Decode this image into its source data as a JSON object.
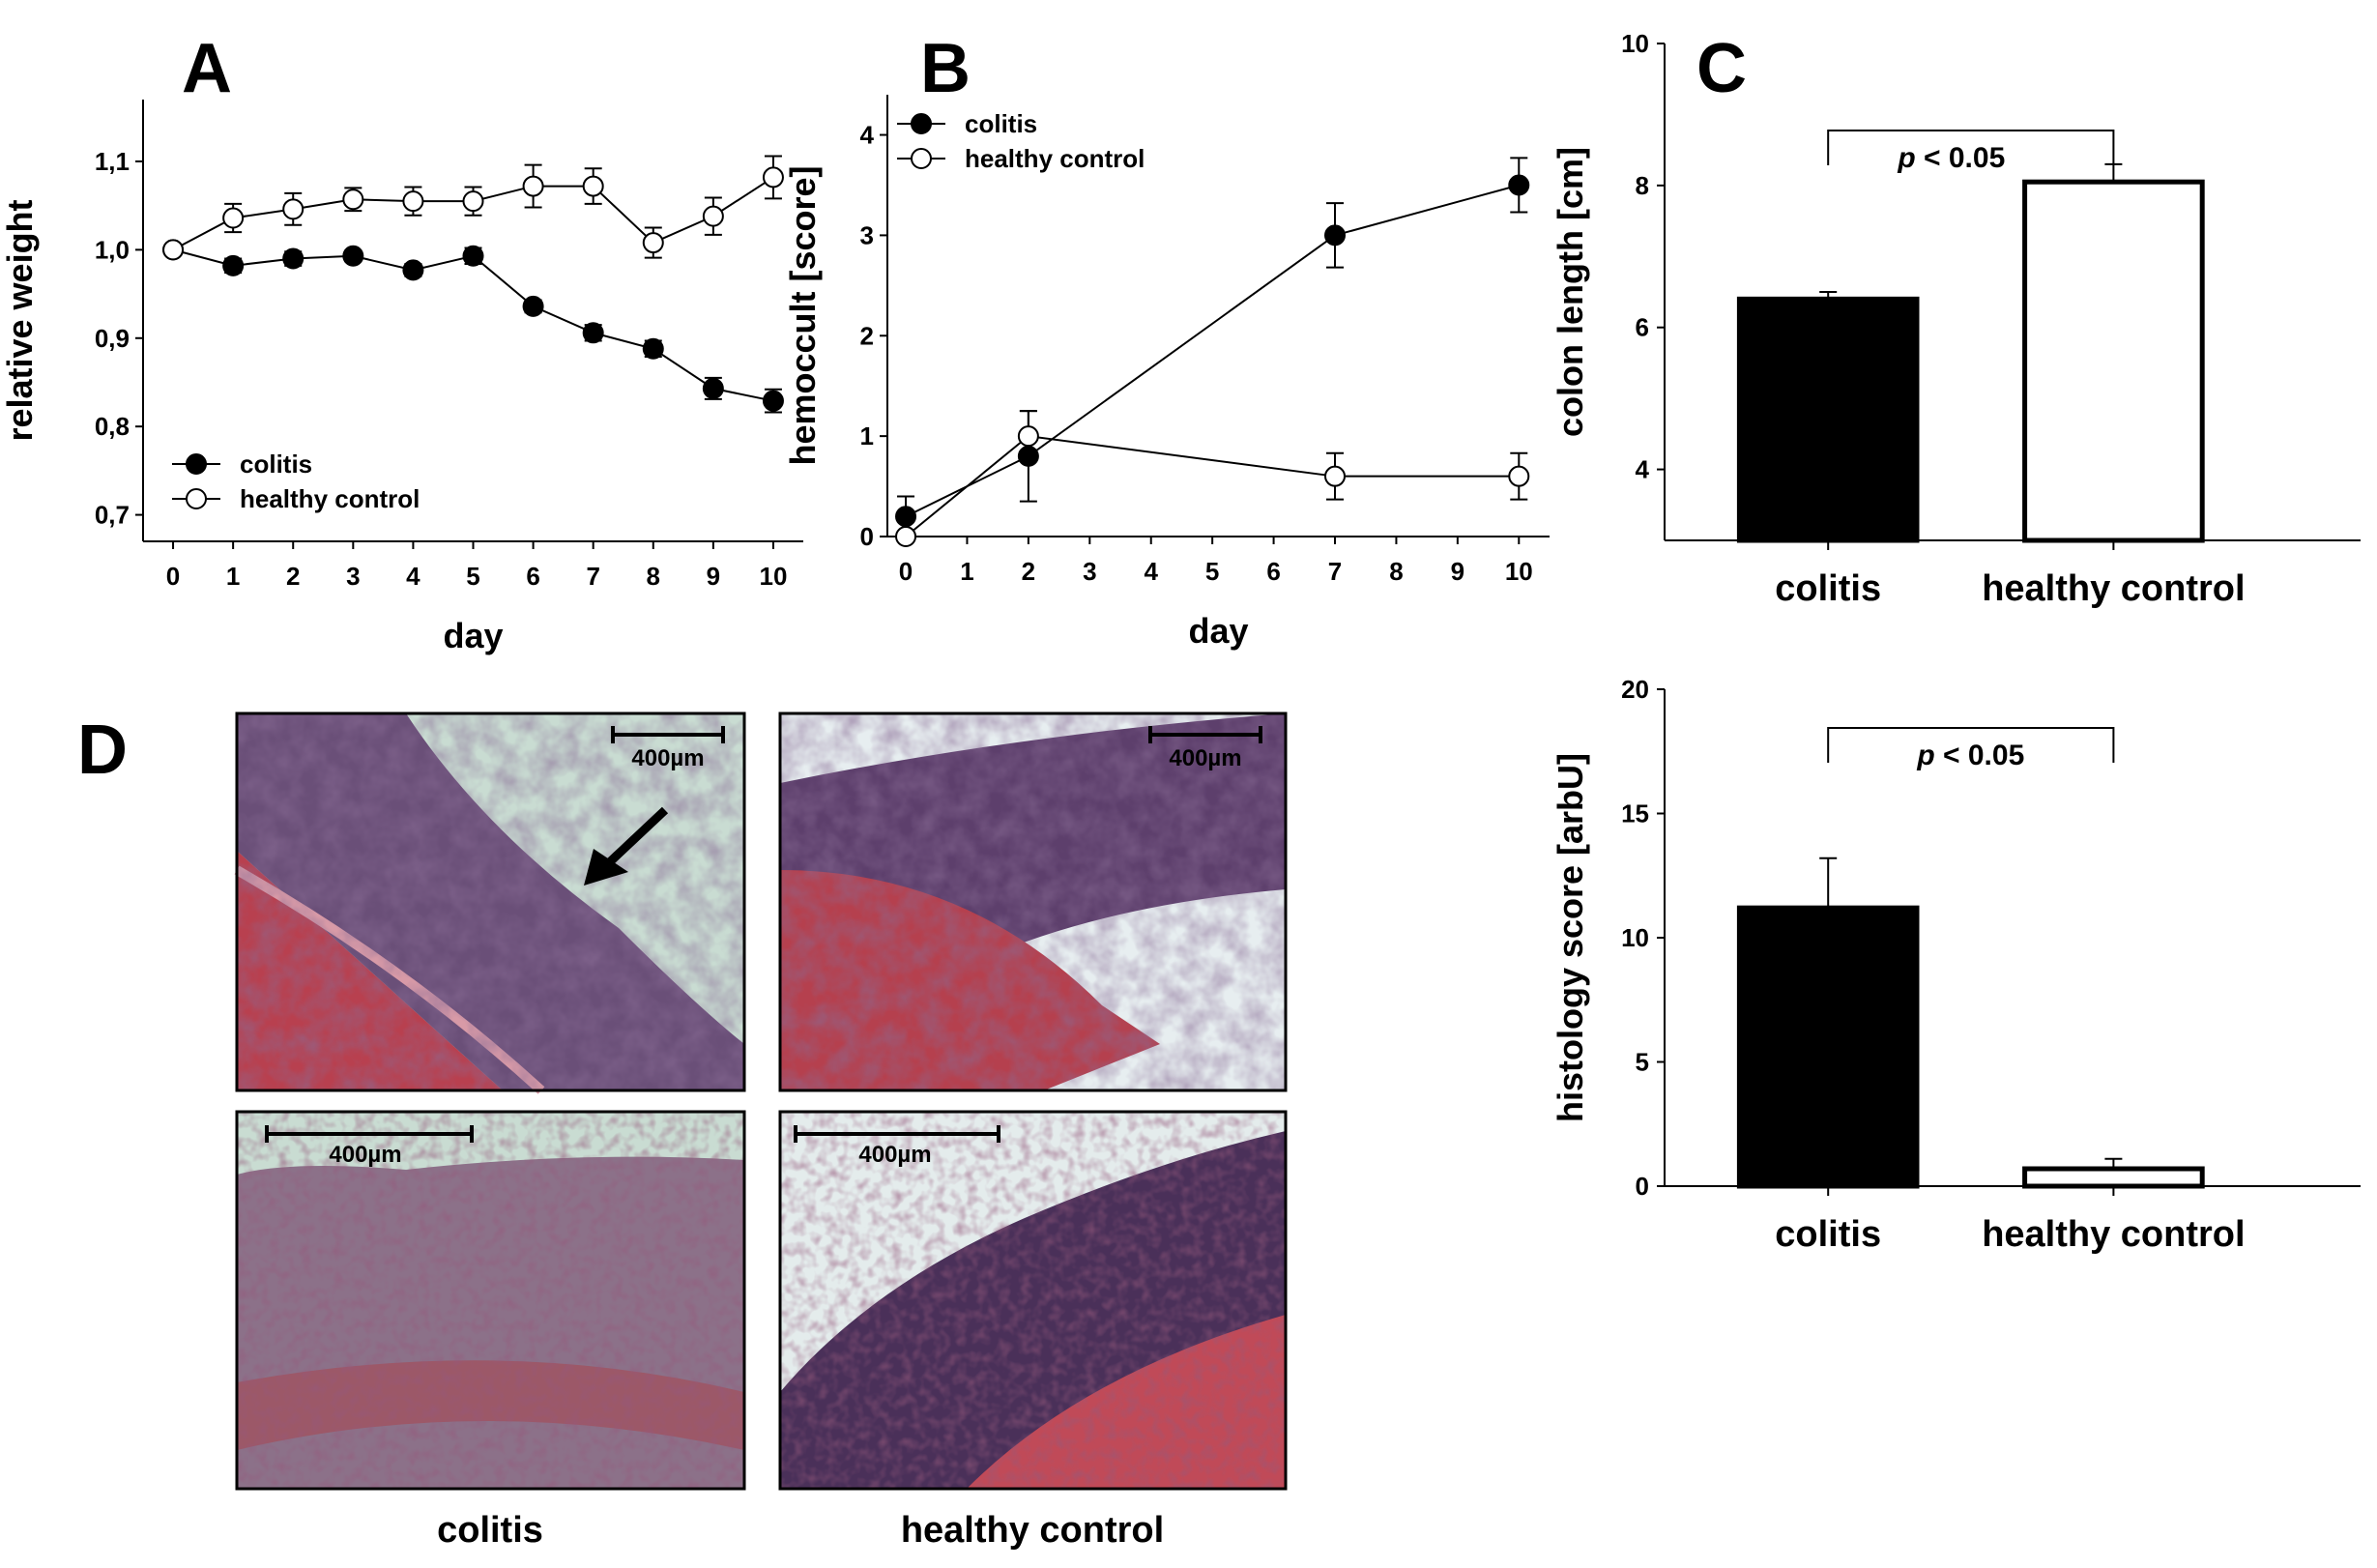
{
  "panels": {
    "a": "A",
    "b": "B",
    "c": "C",
    "d": "D"
  },
  "chart_data": [
    {
      "id": "A",
      "type": "line",
      "xlabel": "day",
      "ylabel": "relative weight",
      "x": [
        0,
        1,
        2,
        3,
        4,
        5,
        6,
        7,
        8,
        9,
        10
      ],
      "x_ticks": [
        "0",
        "1",
        "2",
        "3",
        "4",
        "5",
        "6",
        "7",
        "8",
        "9",
        "10"
      ],
      "y_ticks": [
        {
          "v": 0.7,
          "label": "0,7"
        },
        {
          "v": 0.8,
          "label": "0,8"
        },
        {
          "v": 0.9,
          "label": "0,9"
        },
        {
          "v": 1.0,
          "label": "1,0"
        },
        {
          "v": 1.1,
          "label": "1,1"
        }
      ],
      "ylim": [
        0.67,
        1.17
      ],
      "xlim": [
        -0.5,
        10.5
      ],
      "legend": "bottom-left",
      "series": [
        {
          "name": "colitis",
          "marker": "filled",
          "values": [
            1.0,
            0.982,
            0.99,
            0.993,
            0.977,
            0.993,
            0.936,
            0.906,
            0.888,
            0.843,
            0.829
          ],
          "errors": [
            0,
            0.008,
            0.008,
            0.006,
            0.007,
            0.009,
            0.007,
            0.009,
            0.009,
            0.012,
            0.013
          ]
        },
        {
          "name": "healthy control",
          "marker": "open",
          "values": [
            1.0,
            1.036,
            1.046,
            1.057,
            1.055,
            1.055,
            1.072,
            1.072,
            1.008,
            1.038,
            1.082
          ],
          "errors": [
            0,
            0.016,
            0.018,
            0.013,
            0.016,
            0.016,
            0.024,
            0.02,
            0.017,
            0.021,
            0.024
          ]
        }
      ]
    },
    {
      "id": "B",
      "type": "line",
      "xlabel": "day",
      "ylabel": "hemoccult [score]",
      "x_ticks": [
        "0",
        "1",
        "2",
        "3",
        "4",
        "5",
        "6",
        "7",
        "8",
        "9",
        "10"
      ],
      "y_ticks": [
        {
          "v": 0,
          "label": "0"
        },
        {
          "v": 1,
          "label": "1"
        },
        {
          "v": 2,
          "label": "2"
        },
        {
          "v": 3,
          "label": "3"
        },
        {
          "v": 4,
          "label": "4"
        }
      ],
      "ylim": [
        0,
        4.4
      ],
      "xlim": [
        -0.3,
        10.5
      ],
      "legend": "top-left",
      "series": [
        {
          "name": "colitis",
          "marker": "filled",
          "x": [
            0,
            2,
            7,
            10
          ],
          "values": [
            0.2,
            0.8,
            3.0,
            3.5
          ],
          "errors": [
            0.2,
            0.45,
            0.32,
            0.27
          ]
        },
        {
          "name": "healthy control",
          "marker": "open",
          "x": [
            0,
            2,
            7,
            10
          ],
          "values": [
            0.0,
            1.0,
            0.6,
            0.6
          ],
          "errors": [
            0,
            0.25,
            0.23,
            0.23
          ]
        }
      ]
    },
    {
      "id": "C-top",
      "type": "bar",
      "ylabel": "colon length [cm]",
      "categories": [
        "colitis",
        "healthy control"
      ],
      "values": [
        6.4,
        8.05
      ],
      "errors": [
        0.1,
        0.25
      ],
      "fills": [
        "#000000",
        "#ffffff"
      ],
      "y_ticks": [
        {
          "v": 4,
          "label": "4"
        },
        {
          "v": 6,
          "label": "6"
        },
        {
          "v": 8,
          "label": "8"
        },
        {
          "v": 10,
          "label": "10"
        }
      ],
      "ylim": [
        3,
        10
      ],
      "annotation": "p < 0.05"
    },
    {
      "id": "C-bottom",
      "type": "bar",
      "ylabel": "histology score [arbU]",
      "categories": [
        "colitis",
        "healthy control"
      ],
      "values": [
        11.2,
        0.7
      ],
      "errors": [
        2.0,
        0.4
      ],
      "fills": [
        "#000000",
        "#ffffff"
      ],
      "y_ticks": [
        {
          "v": 0,
          "label": "0"
        },
        {
          "v": 5,
          "label": "5"
        },
        {
          "v": 10,
          "label": "10"
        },
        {
          "v": 15,
          "label": "15"
        },
        {
          "v": 20,
          "label": "20"
        }
      ],
      "ylim": [
        0,
        20
      ],
      "annotation": "p < 0.05"
    }
  ],
  "micrographs": {
    "scale_label": "400µm",
    "captions": [
      "colitis",
      "healthy control"
    ]
  }
}
